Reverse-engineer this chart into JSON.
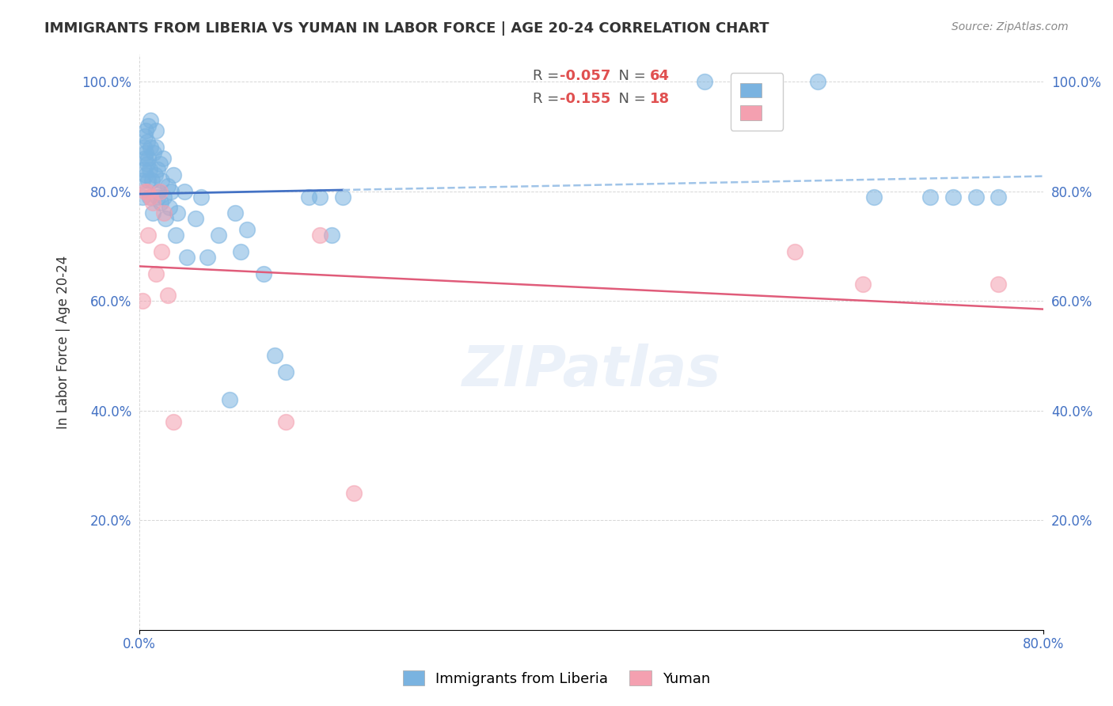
{
  "title": "IMMIGRANTS FROM LIBERIA VS YUMAN IN LABOR FORCE | AGE 20-24 CORRELATION CHART",
  "source_text": "Source: ZipAtlas.com",
  "xlabel": "",
  "ylabel": "In Labor Force | Age 20-24",
  "xlim": [
    0.0,
    0.8
  ],
  "ylim": [
    0.0,
    1.05
  ],
  "x_ticks": [
    0.0,
    0.1,
    0.2,
    0.3,
    0.4,
    0.5,
    0.6,
    0.7,
    0.8
  ],
  "x_tick_labels": [
    "0.0%",
    "",
    "",
    "",
    "",
    "",
    "",
    "",
    "80.0%"
  ],
  "y_ticks": [
    0.0,
    0.2,
    0.4,
    0.6,
    0.8,
    1.0
  ],
  "y_tick_labels": [
    "",
    "20.0%",
    "40.0%",
    "60.0%",
    "80.0%",
    "100.0%"
  ],
  "legend_r1": "R = -0.057",
  "legend_n1": "N = 64",
  "legend_r2": "R = -0.155",
  "legend_n2": "N = 18",
  "liberia_color": "#7ab3e0",
  "yuman_color": "#f4a0b0",
  "trendline1_color": "#4472c4",
  "trendline2_color": "#e05c7a",
  "trendline1_dash_color": "#a0c4e8",
  "watermark": "ZIPatlas",
  "liberia_scatter_x": [
    0.003,
    0.003,
    0.004,
    0.004,
    0.005,
    0.005,
    0.006,
    0.006,
    0.006,
    0.007,
    0.007,
    0.008,
    0.008,
    0.008,
    0.009,
    0.009,
    0.01,
    0.01,
    0.011,
    0.012,
    0.013,
    0.014,
    0.015,
    0.015,
    0.016,
    0.016,
    0.017,
    0.018,
    0.019,
    0.02,
    0.021,
    0.022,
    0.023,
    0.025,
    0.027,
    0.028,
    0.03,
    0.032,
    0.034,
    0.04,
    0.042,
    0.05,
    0.055,
    0.06,
    0.07,
    0.08,
    0.085,
    0.09,
    0.095,
    0.11,
    0.12,
    0.13,
    0.15,
    0.16,
    0.17,
    0.18,
    0.5,
    0.55,
    0.6,
    0.65,
    0.7,
    0.72,
    0.74,
    0.76
  ],
  "liberia_scatter_y": [
    0.82,
    0.79,
    0.84,
    0.88,
    0.86,
    0.9,
    0.83,
    0.87,
    0.91,
    0.85,
    0.89,
    0.82,
    0.86,
    0.92,
    0.79,
    0.84,
    0.88,
    0.93,
    0.82,
    0.76,
    0.87,
    0.83,
    0.88,
    0.91,
    0.79,
    0.84,
    0.8,
    0.85,
    0.78,
    0.82,
    0.86,
    0.79,
    0.75,
    0.81,
    0.77,
    0.8,
    0.83,
    0.72,
    0.76,
    0.8,
    0.68,
    0.75,
    0.79,
    0.68,
    0.72,
    0.42,
    0.76,
    0.69,
    0.73,
    0.65,
    0.5,
    0.47,
    0.79,
    0.79,
    0.72,
    0.79,
    1.0,
    0.99,
    1.0,
    0.79,
    0.79,
    0.79,
    0.79,
    0.79
  ],
  "yuman_scatter_x": [
    0.003,
    0.005,
    0.007,
    0.008,
    0.01,
    0.012,
    0.015,
    0.018,
    0.02,
    0.022,
    0.025,
    0.03,
    0.13,
    0.16,
    0.19,
    0.58,
    0.64,
    0.76
  ],
  "yuman_scatter_y": [
    0.6,
    0.8,
    0.8,
    0.72,
    0.79,
    0.78,
    0.65,
    0.8,
    0.69,
    0.76,
    0.61,
    0.38,
    0.38,
    0.72,
    0.25,
    0.69,
    0.63,
    0.63
  ]
}
